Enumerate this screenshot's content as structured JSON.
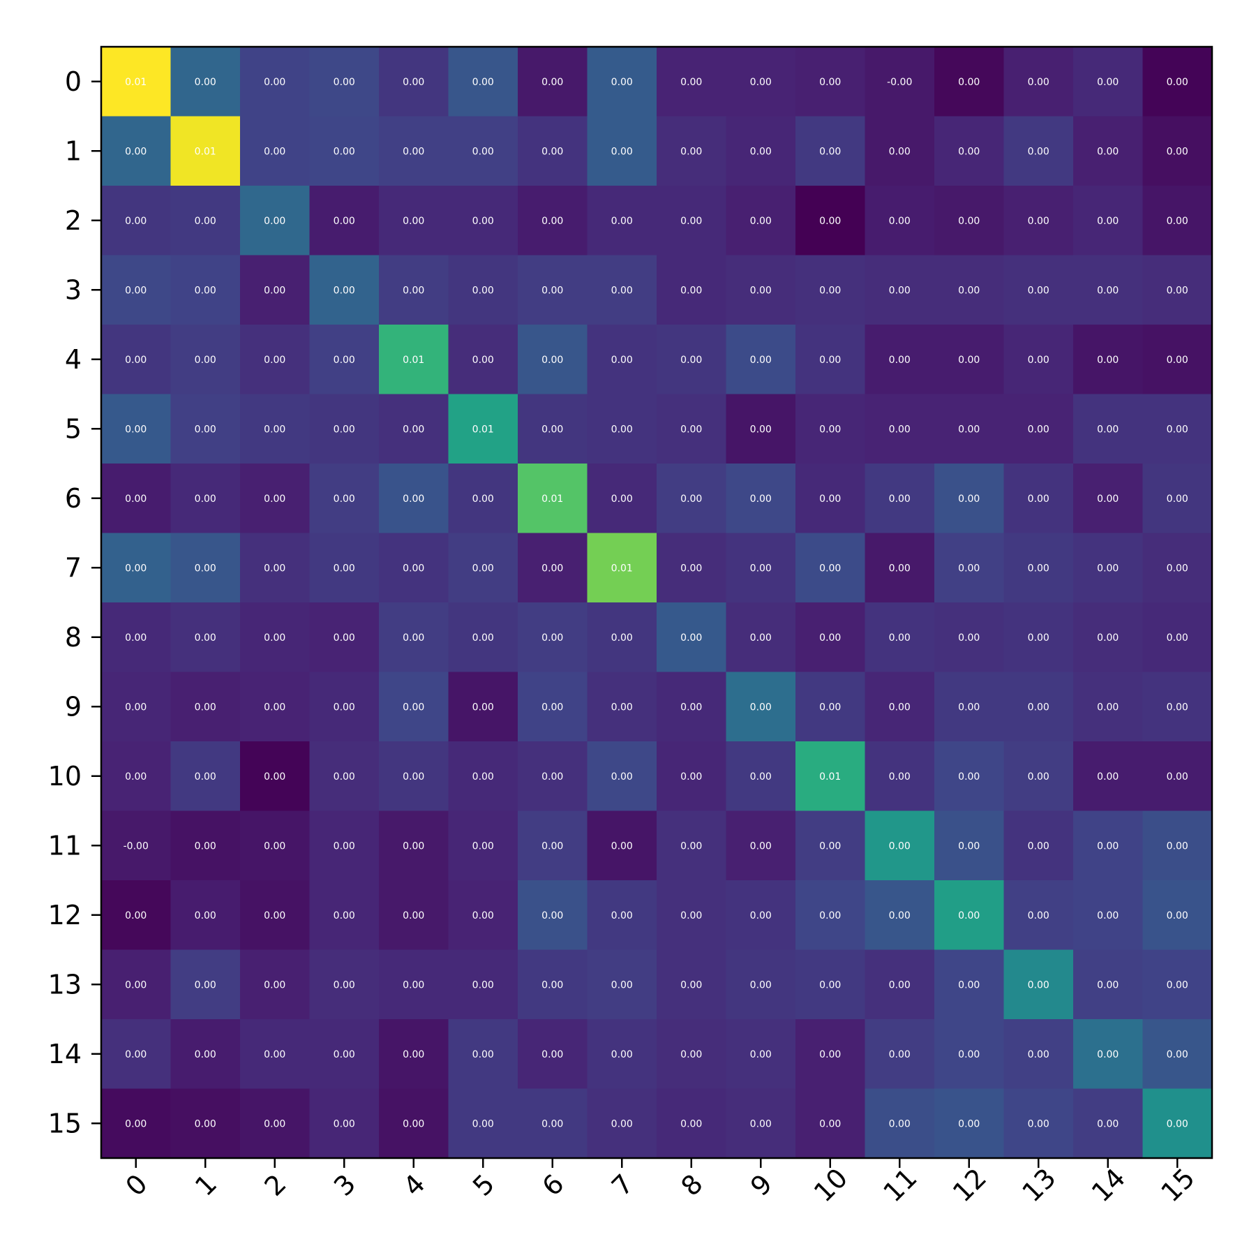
{
  "chart_data": {
    "type": "heatmap",
    "colormap": "viridis",
    "x_tick_labels": [
      "0",
      "1",
      "2",
      "3",
      "4",
      "5",
      "6",
      "7",
      "8",
      "9",
      "10",
      "11",
      "12",
      "13",
      "14",
      "15"
    ],
    "y_tick_labels": [
      "0",
      "1",
      "2",
      "3",
      "4",
      "5",
      "6",
      "7",
      "8",
      "9",
      "10",
      "11",
      "12",
      "13",
      "14",
      "15"
    ],
    "x_tick_rotation_deg": 45,
    "grid": false,
    "legend": "none",
    "cell_labels": [
      [
        "0.01",
        "0.00",
        "0.00",
        "0.00",
        "0.00",
        "0.00",
        "0.00",
        "0.00",
        "0.00",
        "0.00",
        "0.00",
        "-0.00",
        "0.00",
        "0.00",
        "0.00",
        "0.00"
      ],
      [
        "0.00",
        "0.01",
        "0.00",
        "0.00",
        "0.00",
        "0.00",
        "0.00",
        "0.00",
        "0.00",
        "0.00",
        "0.00",
        "0.00",
        "0.00",
        "0.00",
        "0.00",
        "0.00"
      ],
      [
        "0.00",
        "0.00",
        "0.00",
        "0.00",
        "0.00",
        "0.00",
        "0.00",
        "0.00",
        "0.00",
        "0.00",
        "0.00",
        "0.00",
        "0.00",
        "0.00",
        "0.00",
        "0.00"
      ],
      [
        "0.00",
        "0.00",
        "0.00",
        "0.00",
        "0.00",
        "0.00",
        "0.00",
        "0.00",
        "0.00",
        "0.00",
        "0.00",
        "0.00",
        "0.00",
        "0.00",
        "0.00",
        "0.00"
      ],
      [
        "0.00",
        "0.00",
        "0.00",
        "0.00",
        "0.01",
        "0.00",
        "0.00",
        "0.00",
        "0.00",
        "0.00",
        "0.00",
        "0.00",
        "0.00",
        "0.00",
        "0.00",
        "0.00"
      ],
      [
        "0.00",
        "0.00",
        "0.00",
        "0.00",
        "0.00",
        "0.01",
        "0.00",
        "0.00",
        "0.00",
        "0.00",
        "0.00",
        "0.00",
        "0.00",
        "0.00",
        "0.00",
        "0.00"
      ],
      [
        "0.00",
        "0.00",
        "0.00",
        "0.00",
        "0.00",
        "0.00",
        "0.01",
        "0.00",
        "0.00",
        "0.00",
        "0.00",
        "0.00",
        "0.00",
        "0.00",
        "0.00",
        "0.00"
      ],
      [
        "0.00",
        "0.00",
        "0.00",
        "0.00",
        "0.00",
        "0.00",
        "0.00",
        "0.01",
        "0.00",
        "0.00",
        "0.00",
        "0.00",
        "0.00",
        "0.00",
        "0.00",
        "0.00"
      ],
      [
        "0.00",
        "0.00",
        "0.00",
        "0.00",
        "0.00",
        "0.00",
        "0.00",
        "0.00",
        "0.00",
        "0.00",
        "0.00",
        "0.00",
        "0.00",
        "0.00",
        "0.00",
        "0.00"
      ],
      [
        "0.00",
        "0.00",
        "0.00",
        "0.00",
        "0.00",
        "0.00",
        "0.00",
        "0.00",
        "0.00",
        "0.00",
        "0.00",
        "0.00",
        "0.00",
        "0.00",
        "0.00",
        "0.00"
      ],
      [
        "0.00",
        "0.00",
        "0.00",
        "0.00",
        "0.00",
        "0.00",
        "0.00",
        "0.00",
        "0.00",
        "0.00",
        "0.01",
        "0.00",
        "0.00",
        "0.00",
        "0.00",
        "0.00"
      ],
      [
        "-0.00",
        "0.00",
        "0.00",
        "0.00",
        "0.00",
        "0.00",
        "0.00",
        "0.00",
        "0.00",
        "0.00",
        "0.00",
        "0.00",
        "0.00",
        "0.00",
        "0.00",
        "0.00"
      ],
      [
        "0.00",
        "0.00",
        "0.00",
        "0.00",
        "0.00",
        "0.00",
        "0.00",
        "0.00",
        "0.00",
        "0.00",
        "0.00",
        "0.00",
        "0.00",
        "0.00",
        "0.00",
        "0.00"
      ],
      [
        "0.00",
        "0.00",
        "0.00",
        "0.00",
        "0.00",
        "0.00",
        "0.00",
        "0.00",
        "0.00",
        "0.00",
        "0.00",
        "0.00",
        "0.00",
        "0.00",
        "0.00",
        "0.00"
      ],
      [
        "0.00",
        "0.00",
        "0.00",
        "0.00",
        "0.00",
        "0.00",
        "0.00",
        "0.00",
        "0.00",
        "0.00",
        "0.00",
        "0.00",
        "0.00",
        "0.00",
        "0.00",
        "0.00"
      ],
      [
        "0.00",
        "0.00",
        "0.00",
        "0.00",
        "0.00",
        "0.00",
        "0.00",
        "0.00",
        "0.00",
        "0.00",
        "0.00",
        "0.00",
        "0.00",
        "0.00",
        "0.00",
        "0.00"
      ]
    ],
    "relative_intensity": [
      [
        1.0,
        0.33,
        0.2,
        0.22,
        0.16,
        0.27,
        0.07,
        0.29,
        0.1,
        0.1,
        0.09,
        0.07,
        0.02,
        0.09,
        0.12,
        0.01
      ],
      [
        0.33,
        0.98,
        0.2,
        0.21,
        0.19,
        0.19,
        0.15,
        0.29,
        0.13,
        0.11,
        0.17,
        0.07,
        0.11,
        0.17,
        0.09,
        0.04
      ],
      [
        0.16,
        0.17,
        0.34,
        0.08,
        0.12,
        0.12,
        0.08,
        0.12,
        0.12,
        0.09,
        0.0,
        0.08,
        0.07,
        0.09,
        0.11,
        0.06
      ],
      [
        0.22,
        0.2,
        0.09,
        0.32,
        0.18,
        0.16,
        0.18,
        0.18,
        0.12,
        0.13,
        0.14,
        0.13,
        0.13,
        0.14,
        0.14,
        0.13
      ],
      [
        0.16,
        0.18,
        0.14,
        0.19,
        0.65,
        0.13,
        0.27,
        0.15,
        0.16,
        0.23,
        0.15,
        0.08,
        0.08,
        0.11,
        0.06,
        0.05
      ],
      [
        0.28,
        0.19,
        0.17,
        0.16,
        0.14,
        0.58,
        0.16,
        0.15,
        0.14,
        0.06,
        0.11,
        0.1,
        0.1,
        0.1,
        0.15,
        0.15
      ],
      [
        0.08,
        0.12,
        0.09,
        0.18,
        0.26,
        0.16,
        0.73,
        0.12,
        0.18,
        0.22,
        0.12,
        0.17,
        0.25,
        0.15,
        0.09,
        0.16
      ],
      [
        0.31,
        0.27,
        0.14,
        0.17,
        0.15,
        0.18,
        0.09,
        0.79,
        0.13,
        0.15,
        0.23,
        0.07,
        0.19,
        0.17,
        0.15,
        0.13
      ],
      [
        0.12,
        0.14,
        0.11,
        0.1,
        0.18,
        0.16,
        0.18,
        0.16,
        0.28,
        0.13,
        0.09,
        0.15,
        0.14,
        0.15,
        0.13,
        0.12
      ],
      [
        0.11,
        0.09,
        0.1,
        0.12,
        0.21,
        0.06,
        0.2,
        0.14,
        0.12,
        0.36,
        0.17,
        0.11,
        0.17,
        0.17,
        0.14,
        0.15
      ],
      [
        0.1,
        0.17,
        0.01,
        0.13,
        0.16,
        0.12,
        0.14,
        0.22,
        0.11,
        0.17,
        0.62,
        0.15,
        0.21,
        0.18,
        0.08,
        0.08
      ],
      [
        0.07,
        0.05,
        0.06,
        0.11,
        0.07,
        0.11,
        0.18,
        0.06,
        0.14,
        0.09,
        0.18,
        0.53,
        0.25,
        0.15,
        0.2,
        0.24
      ],
      [
        0.02,
        0.08,
        0.05,
        0.11,
        0.07,
        0.1,
        0.25,
        0.17,
        0.14,
        0.15,
        0.21,
        0.27,
        0.56,
        0.19,
        0.2,
        0.26
      ],
      [
        0.09,
        0.18,
        0.09,
        0.13,
        0.12,
        0.12,
        0.17,
        0.18,
        0.14,
        0.16,
        0.17,
        0.14,
        0.21,
        0.47,
        0.19,
        0.2
      ],
      [
        0.14,
        0.08,
        0.12,
        0.12,
        0.06,
        0.17,
        0.11,
        0.15,
        0.13,
        0.14,
        0.09,
        0.18,
        0.21,
        0.19,
        0.37,
        0.27
      ],
      [
        0.03,
        0.04,
        0.06,
        0.11,
        0.05,
        0.17,
        0.17,
        0.14,
        0.12,
        0.13,
        0.09,
        0.24,
        0.26,
        0.21,
        0.18,
        0.5
      ]
    ]
  }
}
